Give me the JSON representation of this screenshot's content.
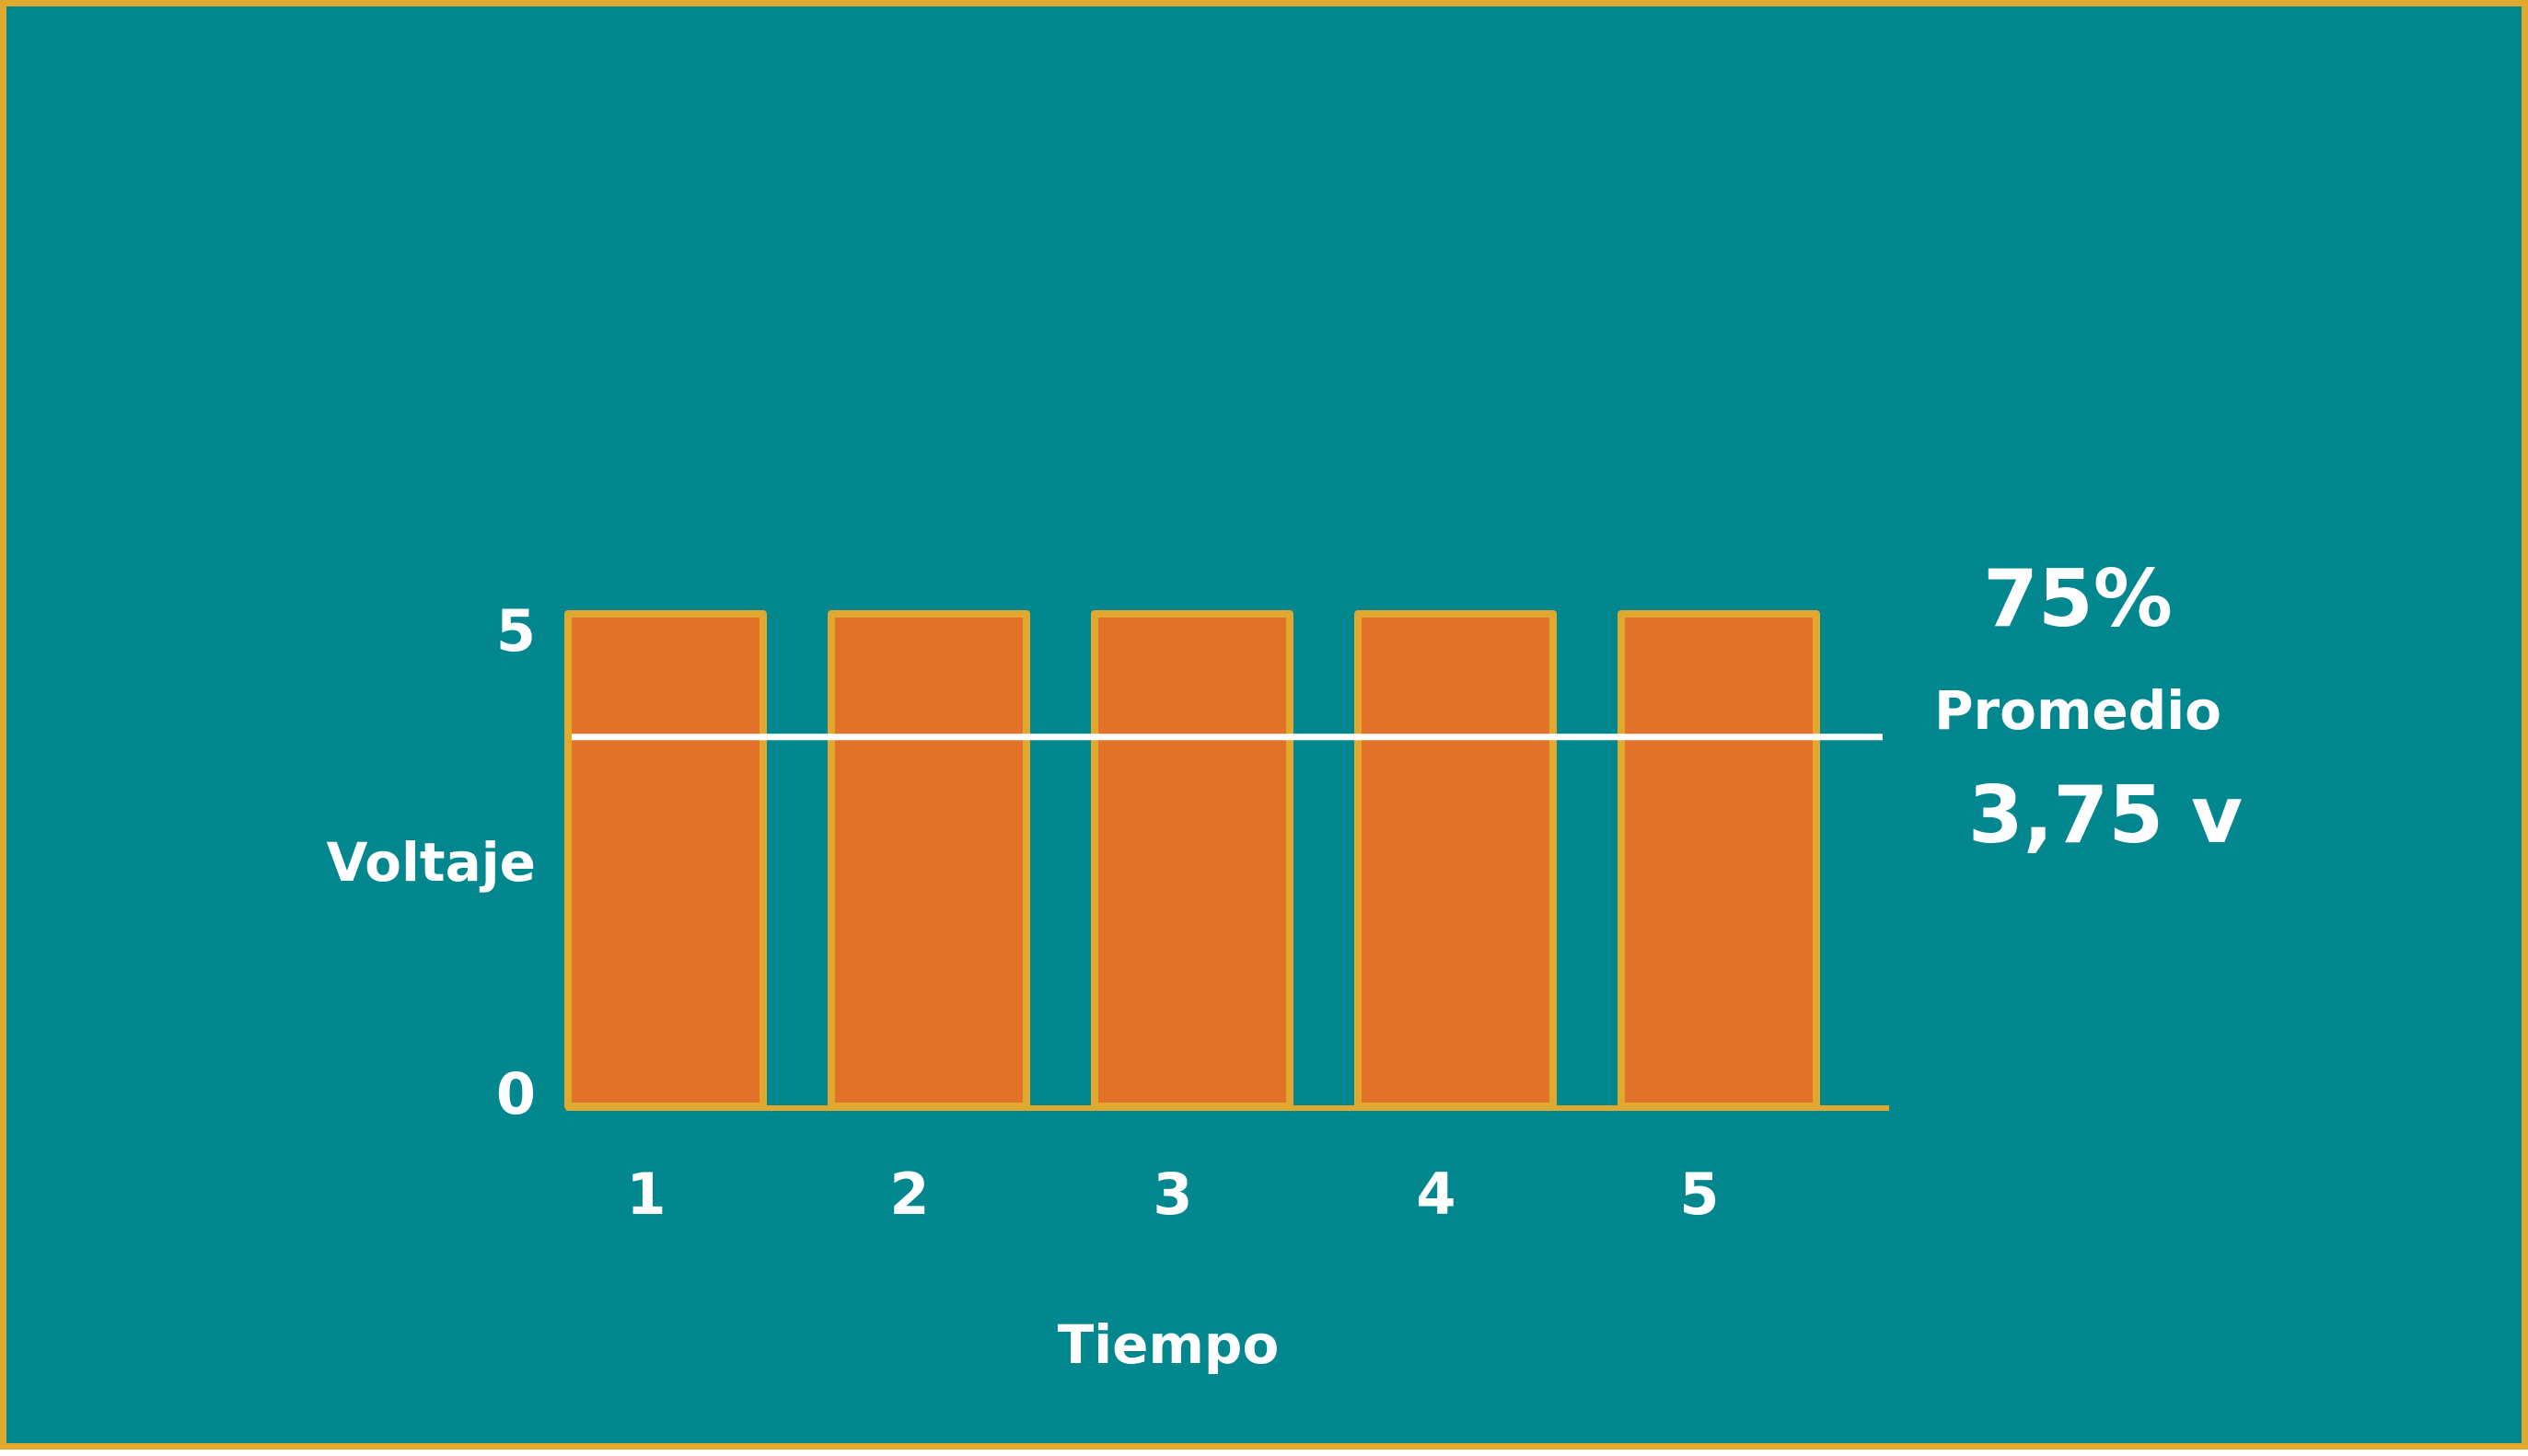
{
  "chart_data": {
    "type": "bar",
    "categories": [
      "1",
      "2",
      "3",
      "4",
      "5"
    ],
    "values": [
      5,
      5,
      5,
      5,
      5
    ],
    "ylim": [
      0,
      5
    ],
    "yticks": [
      "0",
      "5"
    ],
    "xlabel": "Tiempo",
    "ylabel": "Voltaje",
    "average": 3.75,
    "duty_cycle_label": "75%",
    "average_label": "Promedio",
    "average_value_label": "3,75 v",
    "colors": {
      "background": "#03878f",
      "bar_fill": "#e2722a",
      "bar_stroke": "#e0a82e",
      "average_line": "#ffffff",
      "text": "#ffffff"
    }
  }
}
